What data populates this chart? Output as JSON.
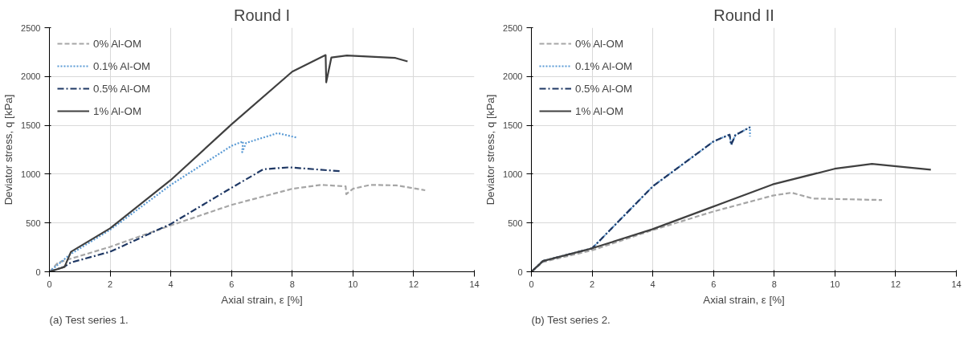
{
  "chart_data": [
    {
      "type": "line",
      "title": "Round I",
      "xlabel": "Axial strain, ε [%]",
      "ylabel": "Deviator stress, q [kPa]",
      "xlim": [
        0,
        14
      ],
      "xticks": [
        0,
        2,
        4,
        6,
        8,
        10,
        12,
        14
      ],
      "ylim": [
        0,
        2500
      ],
      "yticks": [
        0,
        500,
        1000,
        1500,
        2000,
        2500
      ],
      "grid": true,
      "legend": "top left",
      "annotations": [
        "(a) Test series 1."
      ],
      "series": [
        {
          "name": "0% Al-OM",
          "color": "#a6a6a6",
          "line_style": "dashed",
          "x": [
            0,
            0.29,
            2,
            4,
            6,
            8,
            8.95,
            9.76,
            9.78,
            10,
            10.57,
            11.43,
            12.38
          ],
          "values": [
            0,
            95,
            255,
            475,
            685,
            850,
            890,
            875,
            795,
            850,
            890,
            885,
            835
          ]
        },
        {
          "name": "0.1% Al-OM",
          "color": "#5b9bd5",
          "line_style": "dotted",
          "x": [
            0,
            0.67,
            2,
            4,
            6,
            6.38,
            6.35,
            6.48,
            7.52,
            8.14
          ],
          "values": [
            0,
            175,
            430,
            890,
            1290,
            1335,
            1225,
            1320,
            1420,
            1375
          ]
        },
        {
          "name": "0.5% Al-OM",
          "color": "#1f3864",
          "line_style": "dashdot",
          "x": [
            0,
            0.48,
            0.71,
            2,
            4,
            6,
            7.05,
            7.9,
            9.57
          ],
          "values": [
            0,
            50,
            95,
            205,
            490,
            860,
            1050,
            1070,
            1030
          ]
        },
        {
          "name": "1% Al-OM",
          "color": "#404040",
          "line_style": "solid",
          "x": [
            0,
            0.5,
            0.71,
            2,
            4,
            6,
            8,
            9.1,
            9.12,
            9.29,
            9.8,
            11.4,
            11.8
          ],
          "values": [
            0,
            50,
            205,
            445,
            940,
            1510,
            2050,
            2220,
            1940,
            2195,
            2215,
            2190,
            2155
          ]
        }
      ]
    },
    {
      "type": "line",
      "title": "Round II",
      "xlabel": "Axial strain, ε [%]",
      "ylabel": "Deviator stress, q [kPa]",
      "xlim": [
        0,
        14
      ],
      "xticks": [
        0,
        2,
        4,
        6,
        8,
        10,
        12,
        14
      ],
      "ylim": [
        0,
        2500
      ],
      "yticks": [
        0,
        500,
        1000,
        1500,
        2000,
        2500
      ],
      "grid": true,
      "legend": "top left",
      "annotations": [
        "(b) Test series 2."
      ],
      "series": [
        {
          "name": "0% Al-OM",
          "color": "#a6a6a6",
          "line_style": "dashed",
          "x": [
            0,
            0.38,
            2,
            3.98,
            5.97,
            7.95,
            8.57,
            9.28,
            11.55
          ],
          "values": [
            0,
            100,
            220,
            425,
            615,
            780,
            810,
            750,
            735
          ]
        },
        {
          "name": "0.1% Al-OM",
          "color": "#5b9bd5",
          "line_style": "dotted",
          "x": [
            0,
            0.38,
            2,
            4,
            6,
            6.53,
            6.58,
            6.72,
            7.2,
            7.2
          ],
          "values": [
            0,
            110,
            240,
            875,
            1335,
            1405,
            1300,
            1400,
            1480,
            1385
          ]
        },
        {
          "name": "0.5% Al-OM",
          "color": "#1f3864",
          "line_style": "dashdot",
          "x": [
            0,
            0.38,
            2,
            4,
            6,
            6.53,
            6.58,
            6.72,
            7.2
          ],
          "values": [
            0,
            110,
            240,
            875,
            1335,
            1405,
            1300,
            1400,
            1480
          ]
        },
        {
          "name": "1% Al-OM",
          "color": "#404040",
          "line_style": "solid",
          "x": [
            0,
            0.38,
            2,
            3.98,
            5.97,
            7.95,
            9.99,
            11.22,
            13.16
          ],
          "values": [
            0,
            110,
            240,
            435,
            665,
            895,
            1055,
            1105,
            1045
          ]
        }
      ]
    }
  ]
}
